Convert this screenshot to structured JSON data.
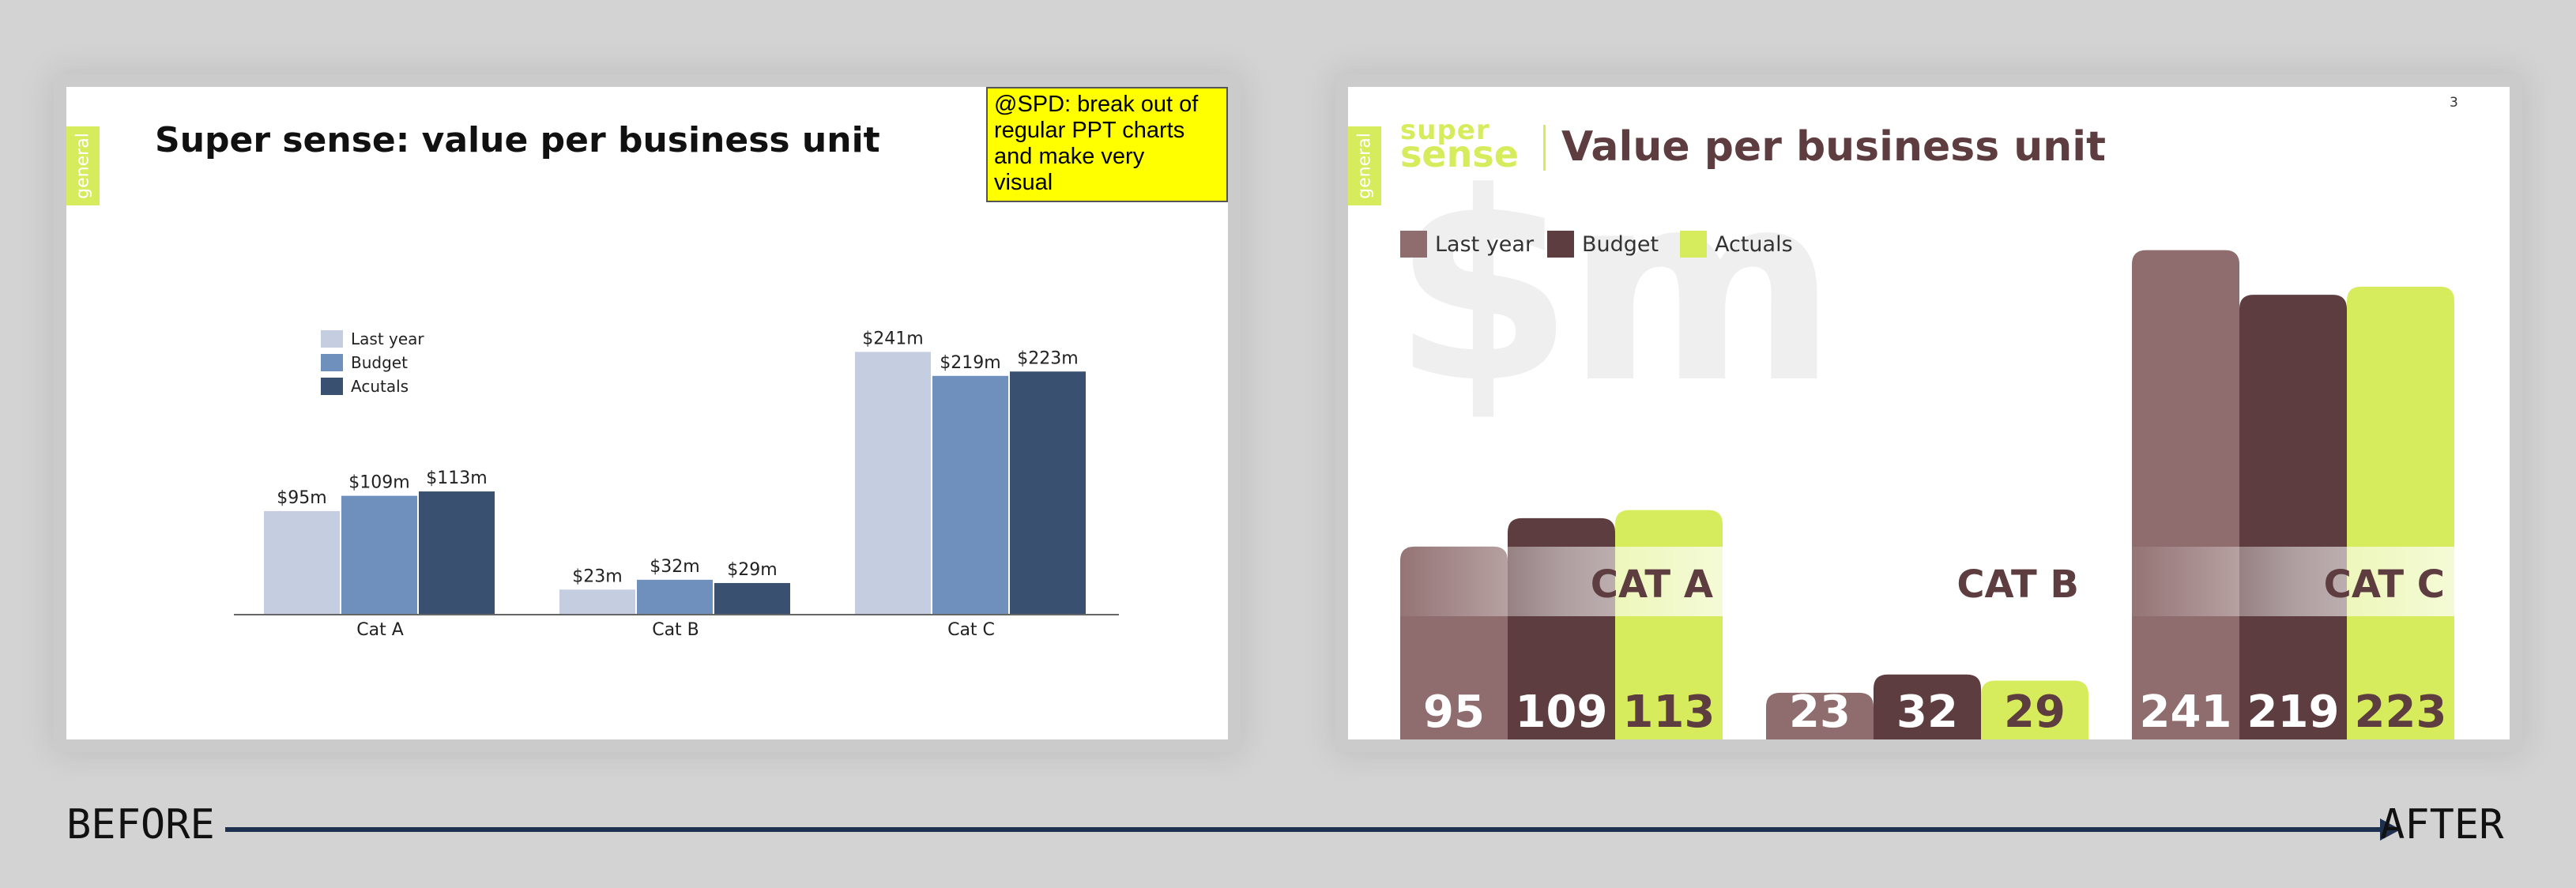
{
  "before": {
    "side_tab": "general",
    "title": "Super sense: value per business unit",
    "sticky_note": [
      "@SPD: break out of",
      "regular PPT charts",
      "and make very",
      "visual"
    ]
  },
  "after": {
    "side_tab": "general",
    "brand": [
      "super",
      "sense"
    ],
    "title": "Value per business unit",
    "page_number": "3",
    "watermark": "$m"
  },
  "caption_before": "BEFORE",
  "caption_after": "AFTER",
  "chart_data": [
    {
      "type": "bar",
      "categories": [
        "Cat A",
        "Cat B",
        "Cat C"
      ],
      "series": [
        {
          "name": "Last year",
          "values": [
            95,
            23,
            241
          ],
          "labels": [
            "$95m",
            "$23m",
            "$241m"
          ],
          "color": "#c5cde0"
        },
        {
          "name": "Budget",
          "values": [
            109,
            32,
            219
          ],
          "labels": [
            "$109m",
            "$32m",
            "$219m"
          ],
          "color": "#6f8fbd"
        },
        {
          "name": "Acutals",
          "values": [
            113,
            29,
            223
          ],
          "labels": [
            "$113m",
            "$29m",
            "$223m"
          ],
          "color": "#3a5070"
        }
      ],
      "legend": "top-left",
      "ylim": [
        0,
        250
      ],
      "grid": false
    },
    {
      "type": "bar",
      "categories": [
        "CAT A",
        "CAT B",
        "CAT C"
      ],
      "series": [
        {
          "name": "Last year",
          "values": [
            95,
            23,
            241
          ],
          "color": "#8f6d6e"
        },
        {
          "name": "Budget",
          "values": [
            109,
            32,
            219
          ],
          "color": "#5e3d40"
        },
        {
          "name": "Actuals",
          "values": [
            113,
            29,
            223
          ],
          "color": "#d6ec5c"
        }
      ],
      "legend": "top-left",
      "ylim": [
        0,
        250
      ],
      "grid": false
    }
  ]
}
